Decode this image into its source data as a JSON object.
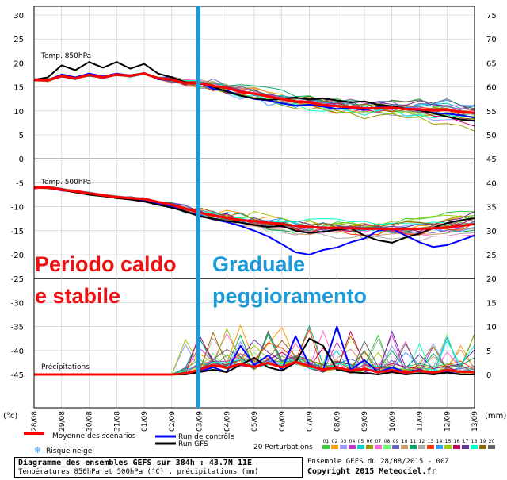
{
  "chart_data": {
    "type": "line",
    "left_axis_ticks": [
      30,
      25,
      20,
      15,
      10,
      5,
      0,
      -5,
      -10,
      -15,
      -20,
      -25,
      -30,
      -35,
      -40,
      -45
    ],
    "right_axis_ticks": [
      75,
      70,
      65,
      60,
      55,
      50,
      45,
      40,
      35,
      30,
      25,
      20,
      15,
      10,
      5,
      0
    ],
    "left_unit": "(°c)",
    "right_unit": "(mm)",
    "dates": [
      "28/08",
      "29/08",
      "30/08",
      "31/08",
      "01/09",
      "02/09",
      "03/09",
      "04/09",
      "05/09",
      "06/09",
      "07/09",
      "08/09",
      "09/09",
      "10/09",
      "11/09",
      "12/09",
      "13/09"
    ],
    "panel_labels": {
      "t850": "Temp. 850hPa",
      "t500": "Temp. 500hPa",
      "precip": "Précipitations"
    },
    "divider_date": "03/09",
    "annotations": {
      "left_line1": "Periodo caldo",
      "left_line2": "e stabile",
      "right_line1": "Graduale",
      "right_line2": "peggioramento"
    },
    "series": [
      {
        "name": "Moyenne des scénarios",
        "panel": "t850",
        "color": "#ff0000",
        "x": [
          0,
          0.5,
          1,
          1.5,
          2,
          2.5,
          3,
          3.5,
          4,
          4.5,
          5,
          5.5,
          6,
          6.5,
          7,
          7.5,
          8,
          8.5,
          9,
          9.5,
          10,
          10.5,
          11,
          11.5,
          12,
          12.5,
          13,
          13.5,
          14,
          14.5,
          15,
          15.5,
          16
        ],
        "y": [
          16.5,
          16.4,
          17.3,
          16.8,
          17.5,
          17,
          17.6,
          17.3,
          17.8,
          16.8,
          16.5,
          15.8,
          15.8,
          15.2,
          14.8,
          14,
          13.6,
          13,
          12.5,
          12,
          11.8,
          11.2,
          11,
          10.8,
          10.5,
          10.6,
          10.7,
          10.4,
          10.3,
          10.1,
          10.2,
          9.8,
          9.6
        ]
      },
      {
        "name": "Run GFS",
        "panel": "t850",
        "color": "#000000",
        "x": [
          0,
          0.5,
          1,
          1.5,
          2,
          2.5,
          3,
          3.5,
          4,
          4.5,
          5,
          5.5,
          6,
          6.5,
          7,
          7.5,
          8,
          8.5,
          9,
          9.5,
          10,
          10.5,
          11,
          11.5,
          12,
          12.5,
          13,
          13.5,
          14,
          14.5,
          15,
          15.5,
          16
        ],
        "y": [
          16.5,
          17,
          19.5,
          18.5,
          20.2,
          19,
          20.2,
          18.8,
          19.8,
          17.8,
          17,
          16,
          15.8,
          15,
          14,
          13.2,
          12.6,
          12.3,
          12.5,
          12.8,
          12.4,
          12.6,
          12.2,
          11.8,
          12,
          11.3,
          11,
          10.5,
          10.2,
          9.5,
          8.8,
          8.2,
          8
        ]
      },
      {
        "name": "Run de contrôle",
        "panel": "t850",
        "color": "#0000ff",
        "x": [
          0,
          0.5,
          1,
          1.5,
          2,
          2.5,
          3,
          3.5,
          4,
          4.5,
          5,
          5.5,
          6,
          6.5,
          7,
          7.5,
          8,
          8.5,
          9,
          9.5,
          10,
          10.5,
          11,
          11.5,
          12,
          12.5,
          13,
          13.5,
          14,
          14.5,
          15,
          15.5,
          16
        ],
        "y": [
          16.5,
          16.4,
          17.6,
          17,
          17.8,
          17.2,
          17.8,
          17.4,
          17.9,
          16.6,
          16.4,
          15.7,
          15.9,
          14.6,
          14.2,
          13.2,
          12.5,
          12.2,
          11.6,
          11.1,
          11.3,
          10.9,
          10.4,
          10.6,
          10.2,
          10.8,
          11,
          10.4,
          10.1,
          9.6,
          9.4,
          9.1,
          8.6
        ]
      },
      {
        "name": "Moyenne des scénarios",
        "panel": "t500",
        "color": "#ff0000",
        "x": [
          0,
          0.5,
          1,
          1.5,
          2,
          2.5,
          3,
          3.5,
          4,
          4.5,
          5,
          5.5,
          6,
          6.5,
          7,
          7.5,
          8,
          8.5,
          9,
          9.5,
          10,
          10.5,
          11,
          11.5,
          12,
          12.5,
          13,
          13.5,
          14,
          14.5,
          15,
          15.5,
          16
        ],
        "y": [
          -6,
          -6,
          -6.4,
          -6.8,
          -7.2,
          -7.6,
          -8,
          -8.2,
          -8.4,
          -9,
          -9.6,
          -10.4,
          -11.2,
          -11.8,
          -12.3,
          -12.8,
          -13,
          -13.4,
          -13.6,
          -14,
          -14.2,
          -14.4,
          -14.4,
          -14.5,
          -14.6,
          -14.6,
          -14.7,
          -14.6,
          -14.6,
          -14.5,
          -14.3,
          -14,
          -13.6
        ]
      },
      {
        "name": "Run GFS",
        "panel": "t500",
        "color": "#000000",
        "x": [
          0,
          0.5,
          1,
          1.5,
          2,
          2.5,
          3,
          3.5,
          4,
          4.5,
          5,
          5.5,
          6,
          6.5,
          7,
          7.5,
          8,
          8.5,
          9,
          9.5,
          10,
          10.5,
          11,
          11.5,
          12,
          12.5,
          13,
          13.5,
          14,
          14.5,
          15,
          15.5,
          16
        ],
        "y": [
          -6,
          -6.1,
          -6.5,
          -7,
          -7.5,
          -7.8,
          -8.2,
          -8.5,
          -8.9,
          -9.6,
          -10.2,
          -11,
          -12,
          -12.5,
          -13,
          -13.3,
          -13.8,
          -14.2,
          -14,
          -15,
          -15.5,
          -15.2,
          -14.8,
          -14.5,
          -16,
          -17,
          -17.5,
          -16.4,
          -15.6,
          -14.4,
          -13.4,
          -12.8,
          -12.4
        ]
      },
      {
        "name": "Run de contrôle",
        "panel": "t500",
        "color": "#0000ff",
        "x": [
          0,
          0.5,
          1,
          1.5,
          2,
          2.5,
          3,
          3.5,
          4,
          4.5,
          5,
          5.5,
          6,
          6.5,
          7,
          7.5,
          8,
          8.5,
          9,
          9.5,
          10,
          10.5,
          11,
          11.5,
          12,
          12.5,
          13,
          13.5,
          14,
          14.5,
          15,
          15.5,
          16
        ],
        "y": [
          -6,
          -6,
          -6.4,
          -6.9,
          -7.3,
          -7.7,
          -8.1,
          -8.4,
          -8.6,
          -9.4,
          -10,
          -11,
          -11.8,
          -12.6,
          -13.2,
          -14,
          -15,
          -16.2,
          -17.8,
          -19.5,
          -20,
          -19,
          -18.5,
          -17.4,
          -16.6,
          -15,
          -14.6,
          -16,
          -17.4,
          -18.4,
          -18,
          -17,
          -16
        ]
      },
      {
        "name": "Moyenne des scénarios",
        "panel": "precip",
        "color": "#ff0000",
        "x": [
          0,
          0.5,
          1,
          1.5,
          2,
          2.5,
          3,
          3.5,
          4,
          4.5,
          5,
          5.5,
          6,
          6.5,
          7,
          7.5,
          8,
          8.5,
          9,
          9.5,
          10,
          10.5,
          11,
          11.5,
          12,
          12.5,
          13,
          13.5,
          14,
          14.5,
          15,
          15.5,
          16
        ],
        "y": [
          0,
          0,
          0,
          0,
          0,
          0,
          0,
          0,
          0,
          0,
          0,
          0.2,
          1,
          2,
          1.4,
          2.2,
          1.6,
          2.4,
          1.5,
          2.6,
          1.8,
          1,
          1.5,
          0.8,
          1.2,
          0.5,
          0.9,
          0.4,
          0.8,
          0.4,
          0.9,
          0.6,
          0.5
        ]
      },
      {
        "name": "Run GFS",
        "panel": "precip",
        "color": "#000000",
        "x": [
          0,
          0.5,
          1,
          1.5,
          2,
          2.5,
          3,
          3.5,
          4,
          4.5,
          5,
          5.5,
          6,
          6.5,
          7,
          7.5,
          8,
          8.5,
          9,
          9.5,
          10,
          10.5,
          11,
          11.5,
          12,
          12.5,
          13,
          13.5,
          14,
          14.5,
          15,
          15.5,
          16
        ],
        "y": [
          0,
          0,
          0,
          0,
          0,
          0,
          0,
          0,
          0,
          0,
          0,
          0,
          0.5,
          1,
          0.5,
          2,
          3.5,
          1.5,
          0.8,
          2.5,
          7.5,
          6,
          1,
          0.5,
          0.3,
          0,
          0.5,
          0,
          0.3,
          0,
          0.4,
          0,
          0
        ]
      },
      {
        "name": "Run de contrôle",
        "panel": "precip",
        "color": "#0000ff",
        "x": [
          0,
          0.5,
          1,
          1.5,
          2,
          2.5,
          3,
          3.5,
          4,
          4.5,
          5,
          5.5,
          6,
          6.5,
          7,
          7.5,
          8,
          8.5,
          9,
          9.5,
          10,
          10.5,
          11,
          11.5,
          12,
          12.5,
          13,
          13.5,
          14,
          14.5,
          15,
          15.5,
          16
        ],
        "y": [
          0,
          0,
          0,
          0,
          0,
          0,
          0,
          0,
          0,
          0,
          0,
          0.2,
          0.6,
          1.5,
          0.5,
          6,
          2,
          4,
          1,
          8,
          2,
          1,
          10,
          1,
          3,
          0.5,
          1.5,
          0.5,
          1,
          0,
          0.5,
          0,
          0
        ]
      }
    ],
    "perturbation_colors": [
      "#33cc33",
      "#ff9900",
      "#9999ff",
      "#cc33cc",
      "#00cccc",
      "#999900",
      "#ff66cc",
      "#66ff66",
      "#6666cc",
      "#cc9966",
      "#00aa66",
      "#aaaaaa",
      "#ff3300",
      "#3399ff",
      "#99cc00",
      "#cc0066",
      "#663399",
      "#00ffcc",
      "#996600",
      "#666666"
    ]
  },
  "legend": {
    "mean_label": "Moyenne des scénarios",
    "control_label": "Run de contrôle",
    "gfs_label": "Run GFS",
    "perturbations_label": "20 Perturbations",
    "perturbation_numbers": [
      "01",
      "02",
      "03",
      "04",
      "05",
      "06",
      "07",
      "08",
      "09",
      "10",
      "11",
      "12",
      "13",
      "14",
      "15",
      "16",
      "17",
      "18",
      "19",
      "20"
    ],
    "snow_label": "Risque neige",
    "snow_icon": "snowflake-icon"
  },
  "footer": {
    "title": "Diagramme des ensembles GEFS sur 384h : 43.7N 11E",
    "subtitle": "Températures 850hPa et 500hPa (°C) , précipitations (mm)",
    "ensemble": "Ensemble GEFS du 28/08/2015 - 00Z",
    "copyright": "Copyright 2015 Meteociel.fr"
  }
}
